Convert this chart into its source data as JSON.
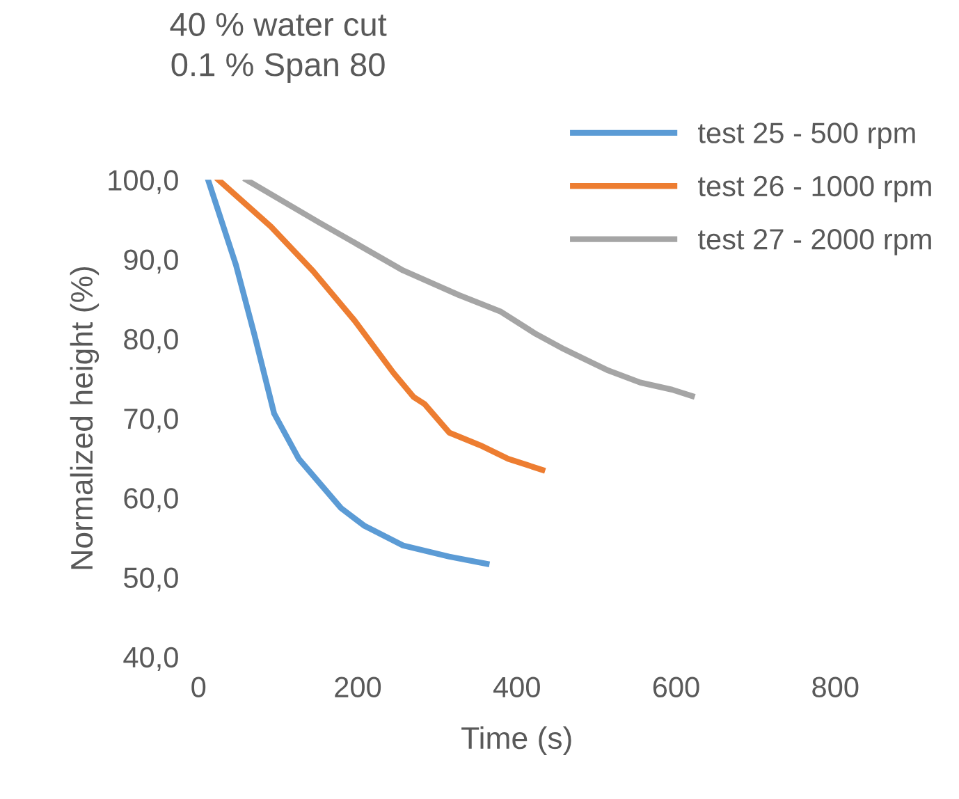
{
  "chart_data": {
    "type": "line",
    "title": "40 % water cut\n0.1 % Span 80",
    "xlabel": "Time (s)",
    "ylabel": "Normalized height (%)",
    "xlim": [
      0,
      800
    ],
    "xticks": [
      0,
      200,
      400,
      600,
      800
    ],
    "ylim": [
      40,
      100
    ],
    "yticks": [
      {
        "value": 40,
        "label": "40,0"
      },
      {
        "value": 50,
        "label": "50,0"
      },
      {
        "value": 60,
        "label": "60,0"
      },
      {
        "value": 70,
        "label": "70,0"
      },
      {
        "value": 80,
        "label": "80,0"
      },
      {
        "value": 90,
        "label": "90,0"
      },
      {
        "value": 100,
        "label": "100,0"
      }
    ],
    "grid": false,
    "legend": "top right",
    "marker": "none",
    "line_style": "solid",
    "series": [
      {
        "name": "test 25 - 500 rpm",
        "color": "#5b9bd5",
        "x": [
          12,
          47,
          70,
          95,
          126,
          179,
          208,
          257,
          315,
          362
        ],
        "values": [
          100,
          89.3,
          80.6,
          70.6,
          64.9,
          58.7,
          56.5,
          54.0,
          52.6,
          51.7
        ]
      },
      {
        "name": "test 26 - 1000 rpm",
        "color": "#ed7d31",
        "x": [
          25,
          91,
          144,
          196,
          245,
          270,
          284,
          315,
          354,
          389,
          432
        ],
        "values": [
          100,
          94.1,
          88.5,
          82.3,
          75.7,
          72.7,
          71.8,
          68.2,
          66.6,
          64.9,
          63.5
        ]
      },
      {
        "name": "test 27 - 2000 rpm",
        "color": "#a5a5a5",
        "x": [
          60,
          152,
          257,
          327,
          380,
          424,
          459,
          515,
          555,
          595,
          620
        ],
        "values": [
          100,
          94.6,
          88.6,
          85.5,
          83.4,
          80.6,
          78.7,
          76.0,
          74.5,
          73.6,
          72.8
        ]
      }
    ]
  }
}
